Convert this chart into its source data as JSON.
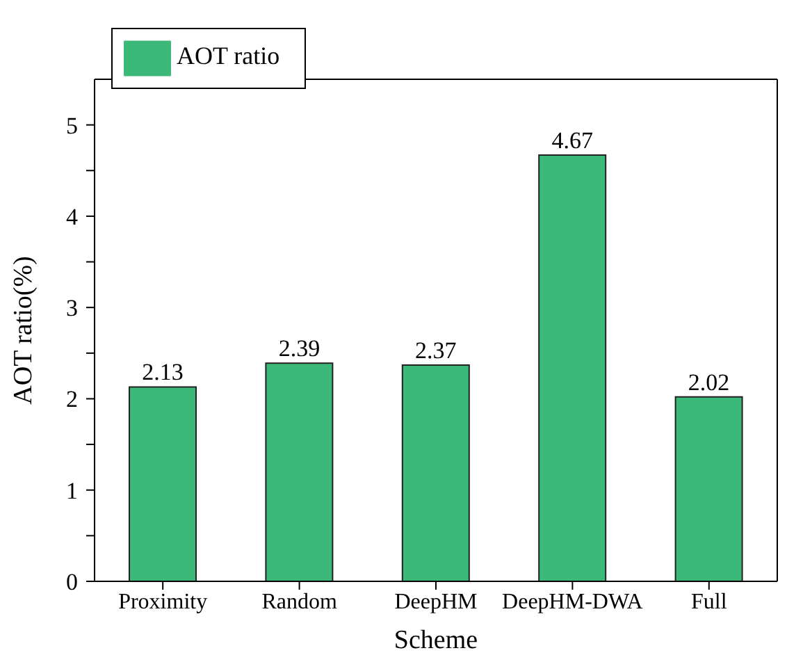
{
  "chart_data": {
    "type": "bar",
    "xlabel": "Scheme",
    "ylabel": "AOT ratio(%)",
    "categories": [
      "Proximity",
      "Random",
      "DeepHM",
      "DeepHM-DWA",
      "Full"
    ],
    "series": [
      {
        "name": "AOT ratio",
        "color": "#3cb878",
        "values": [
          2.13,
          2.39,
          2.37,
          4.67,
          2.02
        ]
      }
    ],
    "ylim": [
      0,
      5.5
    ],
    "yticks": [
      0,
      {
        "value": 0.5,
        "label": null
      },
      1,
      {
        "value": 1.5,
        "label": null
      },
      2,
      {
        "value": 2.5,
        "label": null
      },
      3,
      {
        "value": 3.5,
        "label": null
      },
      4,
      {
        "value": 4.5,
        "label": null
      },
      5
    ],
    "data_labels": true,
    "legend": "top left",
    "grid": false
  }
}
